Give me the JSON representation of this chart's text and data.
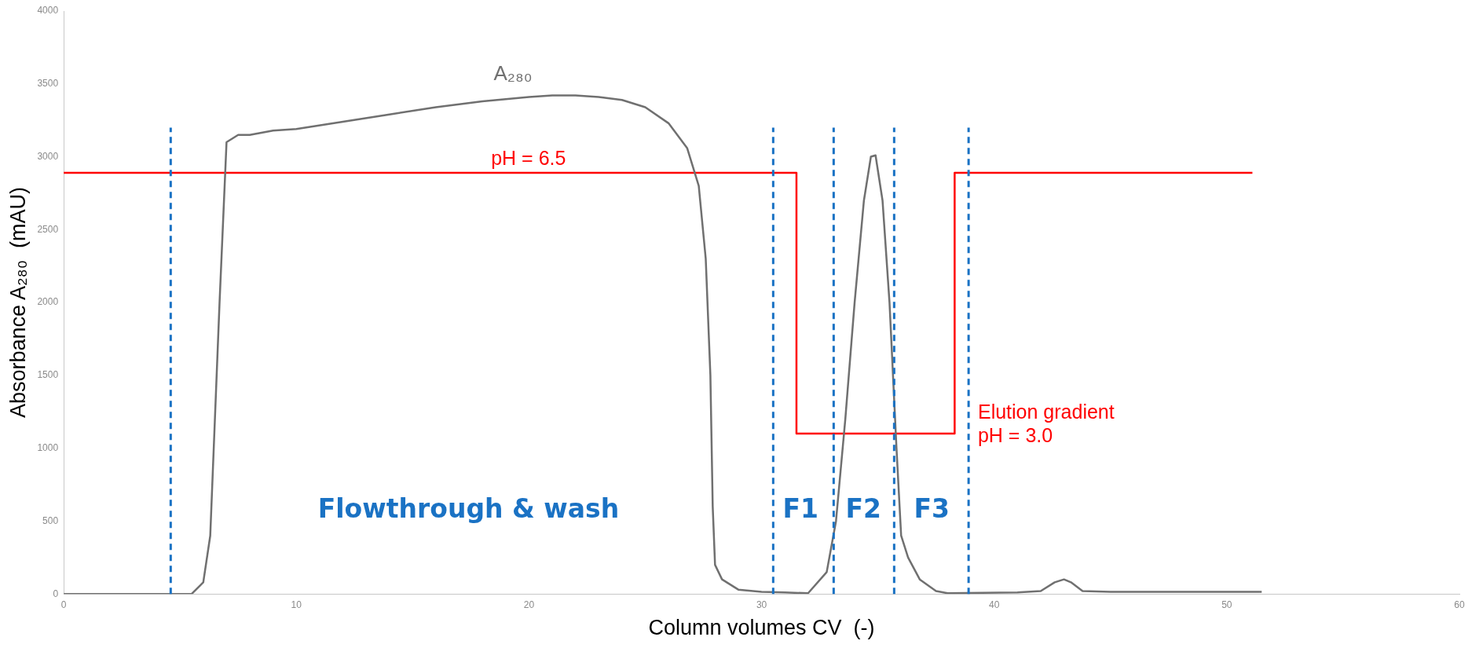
{
  "chart_data": {
    "type": "line",
    "xlabel": "Column volumes CV  (-)",
    "ylabel": "Absorbance A₂₈₀  (mAU)",
    "xlim": [
      0,
      60
    ],
    "xticks": [
      0,
      10,
      20,
      30,
      40,
      50,
      60
    ],
    "ylim": [
      0,
      4000
    ],
    "yticks": [
      0,
      500,
      1000,
      1500,
      2000,
      2500,
      3000,
      3500,
      4000
    ],
    "grid": false,
    "legend": false,
    "marker": "none",
    "series": [
      {
        "name": "A₂₈₀",
        "color": "#707070",
        "x": [
          0,
          5.5,
          6.0,
          6.3,
          6.7,
          7.0,
          7.5,
          8,
          9,
          10,
          12,
          14,
          16,
          18,
          20,
          21,
          22,
          23,
          24,
          25,
          26,
          26.8,
          27.3,
          27.6,
          27.8,
          27.9,
          28.0,
          28.3,
          29,
          30,
          31,
          32,
          32.8,
          33.2,
          33.6,
          34.0,
          34.4,
          34.7,
          34.9,
          35.2,
          35.5,
          35.8,
          36.0,
          36.3,
          36.8,
          37.5,
          38,
          41,
          42,
          42.6,
          43,
          43.3,
          43.8,
          45,
          51.5
        ],
        "values": [
          0,
          0,
          80,
          400,
          2000,
          3100,
          3150,
          3150,
          3180,
          3190,
          3240,
          3290,
          3340,
          3380,
          3410,
          3420,
          3420,
          3410,
          3390,
          3340,
          3230,
          3060,
          2800,
          2300,
          1500,
          600,
          200,
          100,
          30,
          15,
          10,
          5,
          150,
          500,
          1200,
          2000,
          2700,
          3000,
          3010,
          2700,
          2000,
          1000,
          400,
          250,
          100,
          20,
          5,
          10,
          20,
          80,
          100,
          80,
          20,
          15,
          15
        ]
      },
      {
        "type": "line",
        "color": "#ff0000",
        "x": [
          0,
          31.5,
          31.5,
          38.3,
          38.3,
          51.1
        ],
        "values": [
          2890,
          2890,
          1100,
          1100,
          2890,
          2890
        ]
      }
    ],
    "ref_lines": [
      {
        "axis": "x",
        "value": 4.6,
        "color": "#1a72c4",
        "line_style": "dashed"
      },
      {
        "axis": "x",
        "value": 30.5,
        "color": "#1a72c4",
        "line_style": "dashed"
      },
      {
        "axis": "x",
        "value": 33.1,
        "color": "#1a72c4",
        "line_style": "dashed"
      },
      {
        "axis": "x",
        "value": 35.7,
        "color": "#1a72c4",
        "line_style": "dashed"
      },
      {
        "axis": "x",
        "value": 38.9,
        "color": "#1a72c4",
        "line_style": "dashed"
      }
    ],
    "annotations": [
      "pH = 6.5",
      "Elution gradient\npH = 3.0",
      "Flowthrough & wash",
      "F1",
      "F2",
      "F3"
    ]
  }
}
